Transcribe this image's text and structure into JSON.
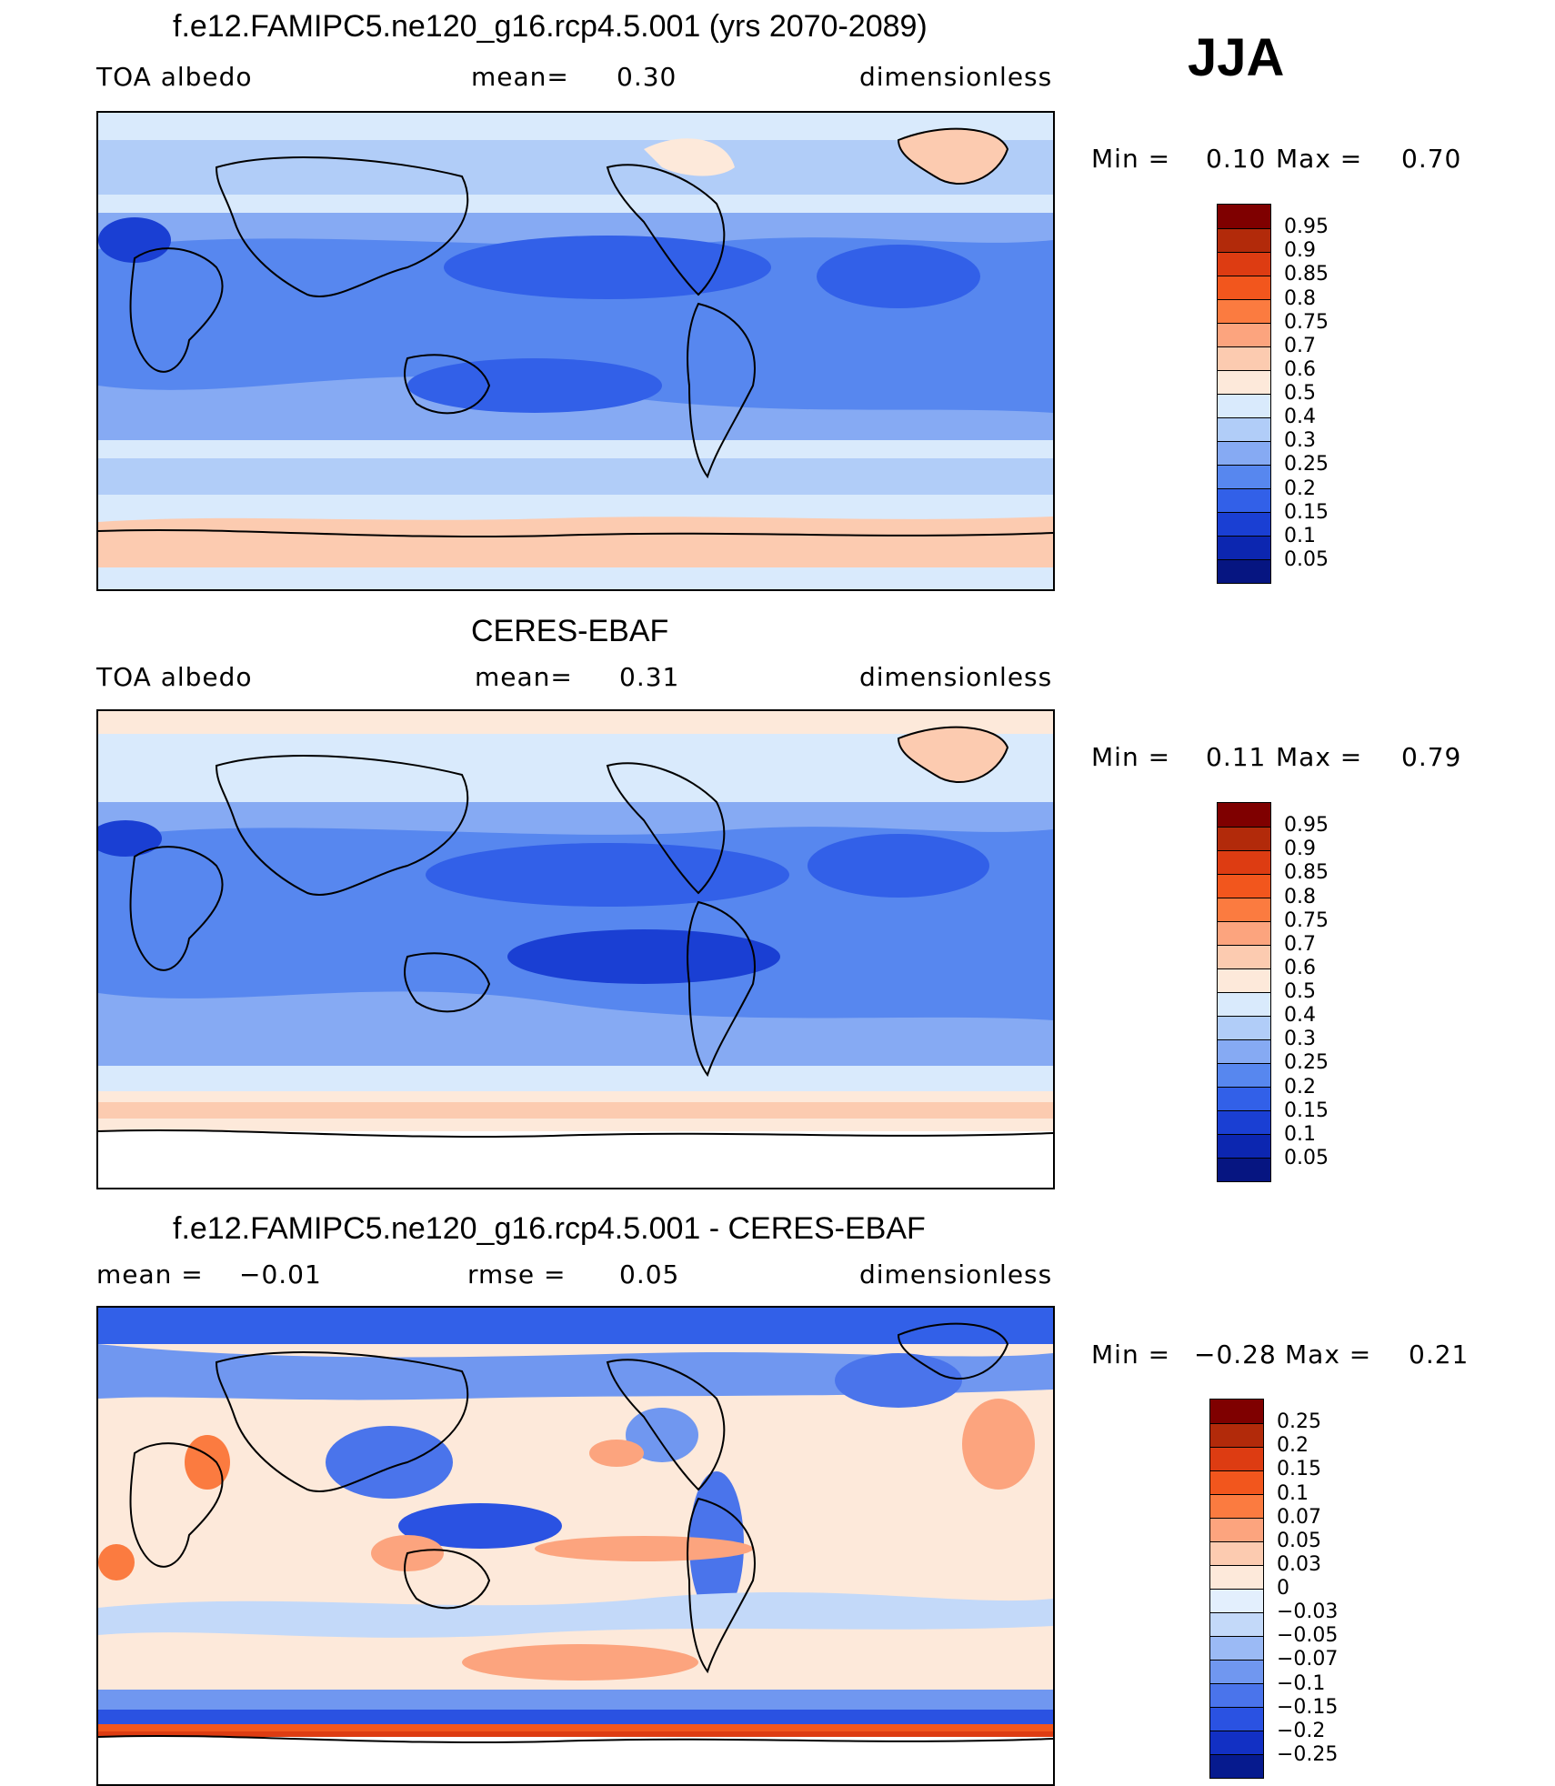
{
  "season": "JJA",
  "panels": [
    {
      "title": "f.e12.FAMIPC5.ne120_g16.rcp4.5.001 (yrs 2070-2089)",
      "left_label": "TOA  albedo",
      "mid_label": "mean=",
      "mid_value": "0.30",
      "right_label": "dimensionless",
      "min_label": "Min  =",
      "min_value": "0.10",
      "max_label": "Max  =",
      "max_value": "0.70",
      "colorbar_labels": [
        "0.95",
        "0.9",
        "0.85",
        "0.8",
        "0.75",
        "0.7",
        "0.6",
        "0.5",
        "0.4",
        "0.3",
        "0.25",
        "0.2",
        "0.15",
        "0.1",
        "0.05"
      ]
    },
    {
      "title": "CERES-EBAF",
      "left_label": "TOA  albedo",
      "mid_label": "mean=",
      "mid_value": "0.31",
      "right_label": "dimensionless",
      "min_label": "Min  =",
      "min_value": "0.11",
      "max_label": "Max  =",
      "max_value": "0.79",
      "colorbar_labels": [
        "0.95",
        "0.9",
        "0.85",
        "0.8",
        "0.75",
        "0.7",
        "0.6",
        "0.5",
        "0.4",
        "0.3",
        "0.25",
        "0.2",
        "0.15",
        "0.1",
        "0.05"
      ]
    },
    {
      "title": "f.e12.FAMIPC5.ne120_g16.rcp4.5.001 - CERES-EBAF",
      "left_label": "mean  =",
      "left_value": "−0.01",
      "mid_label": "rmse  =",
      "mid_value": "0.05",
      "right_label": "dimensionless",
      "min_label": "Min  =",
      "min_value": "−0.28",
      "max_label": "Max  =",
      "max_value": "0.21",
      "colorbar_labels": [
        "0.25",
        "0.2",
        "0.15",
        "0.1",
        "0.07",
        "0.05",
        "0.03",
        "0",
        "−0.03",
        "−0.05",
        "−0.07",
        "−0.1",
        "−0.15",
        "−0.2",
        "−0.25"
      ]
    }
  ],
  "colors": {
    "abs_scale": [
      "#7f0000",
      "#b22a0a",
      "#dd3c12",
      "#f2561d",
      "#fb7b40",
      "#fca47e",
      "#fccbb0",
      "#fde9da",
      "#d9eafc",
      "#b1cdf8",
      "#86aaf3",
      "#5787ef",
      "#3260e8",
      "#1a3fd3",
      "#0c26b0",
      "#061581"
    ],
    "diff_scale": [
      "#7f0000",
      "#b22a0a",
      "#dd3c12",
      "#f2561d",
      "#fb7b40",
      "#fca47e",
      "#fccbb0",
      "#fde9da",
      "#e3effd",
      "#c3d9f9",
      "#9bbaf5",
      "#7097f0",
      "#4a74eb",
      "#2a52e2",
      "#1230c4",
      "#061a8e"
    ]
  }
}
